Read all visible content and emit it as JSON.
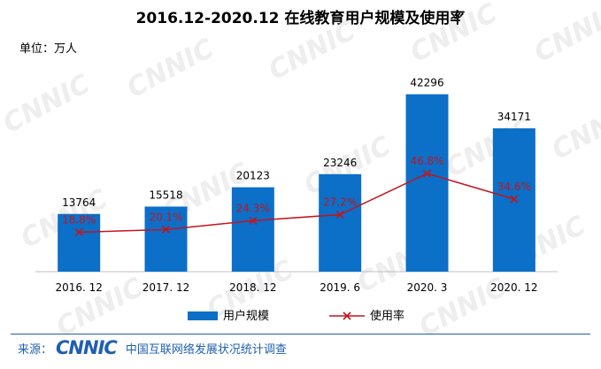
{
  "title": "2016.12-2020.12 在线教育用户规模及使用率",
  "unit_label": "单位：万人",
  "watermark": "CNNIC",
  "footer": {
    "source_label": "来源：",
    "logo_text": "CNNIC",
    "org_text": "中国互联网络发展状况统计调查"
  },
  "colors": {
    "bar": "#0c6fc8",
    "line": "#c0161e",
    "footer": "#1f5fb0"
  },
  "chart_data": {
    "type": "bar",
    "categories": [
      "2016. 12",
      "2017. 12",
      "2018. 12",
      "2019. 6",
      "2020. 3",
      "2020. 12"
    ],
    "series": [
      {
        "name": "用户规模",
        "type": "bar",
        "values": [
          13764,
          15518,
          20123,
          23246,
          42296,
          34171
        ],
        "labels": [
          "13764",
          "15518",
          "20123",
          "23246",
          "42296",
          "34171"
        ]
      },
      {
        "name": "使用率",
        "type": "line",
        "values": [
          18.8,
          20.1,
          24.3,
          27.2,
          46.8,
          34.6
        ],
        "labels": [
          "18.8%",
          "20.1%",
          "24.3%",
          "27.2%",
          "46.8%",
          "34.6%"
        ]
      }
    ],
    "ylim_bar": [
      0,
      50000
    ],
    "ylim_line": [
      0,
      100
    ],
    "legend": "bottom"
  }
}
